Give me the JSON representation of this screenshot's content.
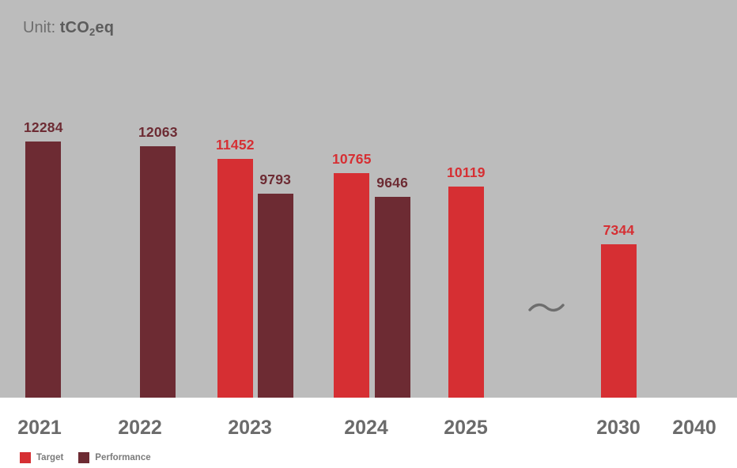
{
  "header": {
    "prefix": "Unit:",
    "unit_main": "tCO",
    "unit_sub": "2",
    "unit_suffix": "eq"
  },
  "colors": {
    "target_red": "#d62f33",
    "performance_maroon": "#6d2b33",
    "chart_background": "#bcbcbc",
    "axis_text": "#6b6b6b",
    "break_mark": "#6e6e6e"
  },
  "legend": {
    "items": [
      {
        "label": "Target",
        "color": "#d62f33"
      },
      {
        "label": "Performance",
        "color": "#6d2b33"
      }
    ]
  },
  "chart_data": {
    "type": "bar",
    "title": "Unit: tCO2eq",
    "ylabel": "tCO2eq",
    "xlabel": "",
    "categories": [
      "2021",
      "2022",
      "2023",
      "2024",
      "2025",
      "2030",
      "2040"
    ],
    "series": [
      {
        "name": "Target",
        "color": "#d62f33",
        "values": [
          null,
          null,
          11452,
          10765,
          10119,
          7344,
          null
        ]
      },
      {
        "name": "Performance",
        "color": "#6d2b33",
        "values": [
          12284,
          12063,
          9793,
          9646,
          null,
          null,
          null
        ]
      }
    ],
    "ylim": [
      0,
      13000
    ],
    "grid": false,
    "value_labels": true,
    "axis_break_between": [
      "2025",
      "2030"
    ],
    "legend_position": "bottom-left"
  }
}
